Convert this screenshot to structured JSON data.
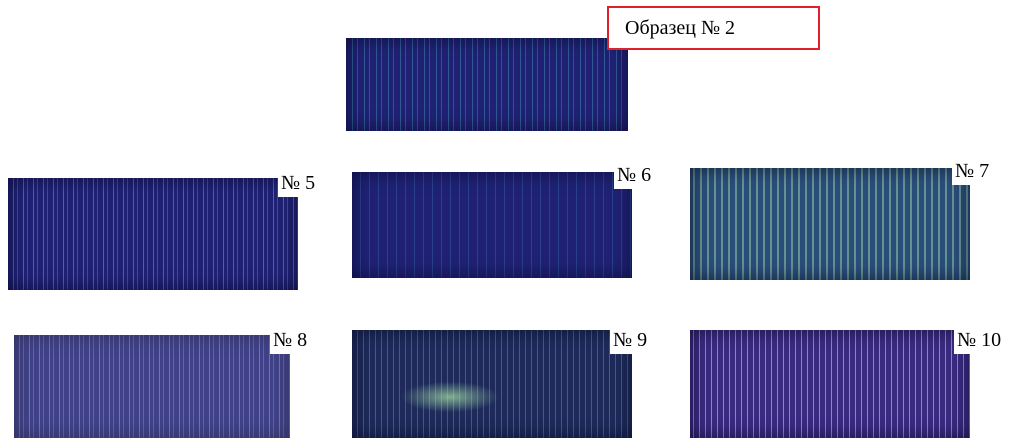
{
  "header": {
    "title": "Образец № 2"
  },
  "samples": [
    {
      "label": "№ 5"
    },
    {
      "label": "№ 6"
    },
    {
      "label": "№ 7"
    },
    {
      "label": "№ 8"
    },
    {
      "label": "№ 9"
    },
    {
      "label": "№ 10"
    }
  ]
}
